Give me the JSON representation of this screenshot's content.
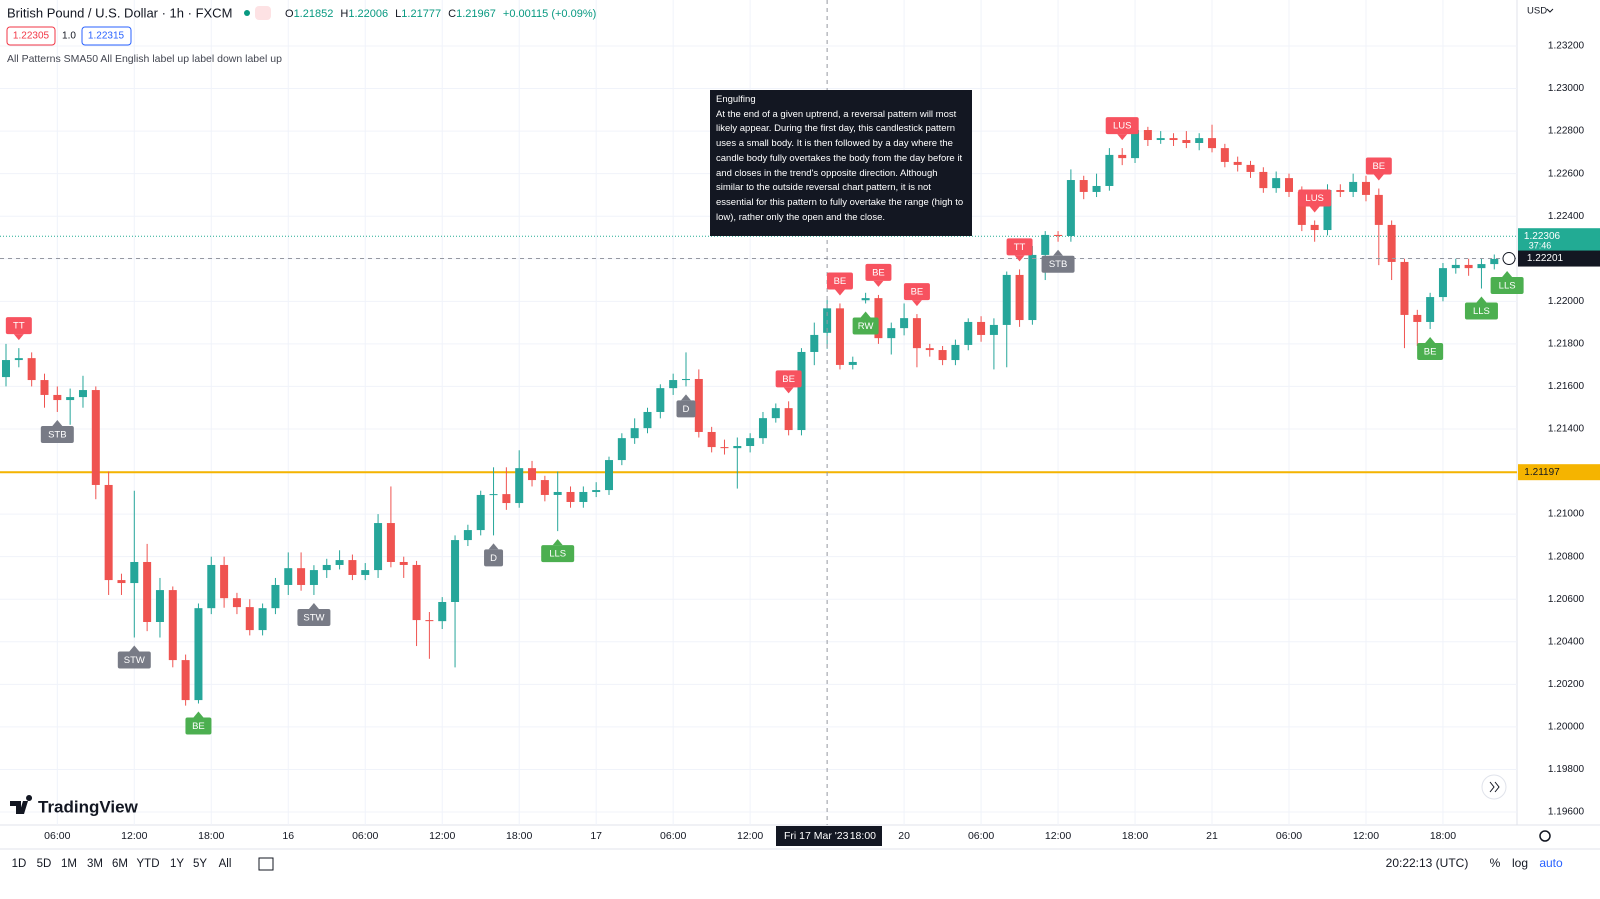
{
  "header": {
    "symbol": "British Pound / U.S. Dollar · 1h · FXCM",
    "ohlc_labels": [
      "O",
      "H",
      "L",
      "C"
    ],
    "change": "+0.00115 (+0.09%)",
    "bid": "1.22305",
    "spread": "1.0",
    "ask": "1.22315",
    "indicators": "All Patterns SMA50 All English label up label down label up",
    "currency": "USD"
  },
  "tooltip": {
    "title": "Engulfing",
    "text": "At the end of a given uptrend, a reversal pattern will most likely appear. During the first day, this candlestick pattern uses a small body. It is then followed by a day where the candle body fully overtakes the body from the day before it and closes in the trend's opposite direction. Although similar to the outside reversal chart pattern, it is not essential for this pattern to fully overtake the range (high to low), rather only the open and the close."
  },
  "chart_data": {
    "type": "candlestick",
    "grid": true,
    "up_color": "#26a69a",
    "down_color": "#ef5350",
    "categories": [
      null,
      null,
      null,
      null,
      "06:00",
      null,
      null,
      null,
      null,
      null,
      "12:00",
      null,
      null,
      null,
      null,
      null,
      "18:00",
      null,
      null,
      null,
      null,
      null,
      "16",
      null,
      null,
      null,
      null,
      null,
      "06:00",
      null,
      null,
      null,
      null,
      null,
      "12:00",
      null,
      null,
      null,
      null,
      null,
      "18:00",
      null,
      null,
      null,
      null,
      null,
      "17",
      null,
      null,
      null,
      null,
      null,
      "06:00",
      null,
      null,
      null,
      null,
      null,
      "12:00",
      null,
      null,
      null,
      null,
      null,
      null,
      null,
      null,
      null,
      null,
      null,
      "20",
      null,
      null,
      null,
      null,
      null,
      "06:00",
      null,
      null,
      null,
      null,
      null,
      "12:00",
      null,
      null,
      null,
      null,
      null,
      "18:00",
      null,
      null,
      null,
      null,
      null,
      "21",
      null,
      null,
      null,
      null,
      null,
      "06:00",
      null,
      null,
      null,
      null,
      null,
      "12:00",
      null,
      null,
      null,
      null,
      null,
      "18:00",
      null,
      null,
      null,
      null,
      null
    ],
    "open": [
      1.21644,
      1.21724,
      1.21733,
      1.2163,
      1.2156,
      1.21536,
      1.2155,
      1.21583,
      1.21137,
      1.2069,
      1.20676,
      1.20775,
      1.20493,
      1.20643,
      1.20314,
      1.20126,
      1.20558,
      1.20761,
      1.20605,
      1.20563,
      1.20455,
      1.20558,
      1.20667,
      1.20746,
      1.20667,
      1.20737,
      1.20761,
      1.20784,
      1.20714,
      1.20737,
      1.20958,
      1.20775,
      1.20761,
      1.20502,
      1.20497,
      1.20587,
      1.20878,
      1.20925,
      1.2109,
      1.21094,
      1.21052,
      1.21216,
      1.2116,
      1.2109,
      1.21104,
      1.21057,
      1.21104,
      1.21113,
      1.21254,
      1.21357,
      1.21404,
      1.2148,
      1.21592,
      1.2163,
      1.21635,
      1.21386,
      1.21315,
      1.2131,
      1.2132,
      1.21357,
      1.21451,
      1.21498,
      1.21395,
      1.21762,
      1.21852,
      1.21967,
      1.21701,
      1.22005,
      1.22015,
      1.21827,
      1.21874,
      1.21921,
      1.2178,
      1.21771,
      1.21724,
      1.21795,
      1.21903,
      1.21842,
      1.21889,
      1.22124,
      1.21912,
      1.22218,
      1.22312,
      1.22307,
      1.2257,
      1.22514,
      1.22542,
      1.22688,
      1.22673,
      1.22805,
      1.22758,
      1.22767,
      1.22758,
      1.22744,
      1.22767,
      1.2272,
      1.22655,
      1.22641,
      1.22608,
      1.22532,
      1.22579,
      1.22514,
      1.22359,
      1.22335,
      1.22523,
      1.22514,
      1.22561,
      1.225,
      1.22359,
      1.22185,
      1.21936,
      1.21903,
      1.2202,
      1.22156,
      1.22171,
      1.22156,
      1.22175,
      1.22199
    ],
    "high": [
      1.218,
      1.2178,
      1.2176,
      1.2166,
      1.216,
      1.2159,
      1.2165,
      1.216,
      1.212,
      1.2072,
      1.2111,
      1.2086,
      1.207,
      1.2066,
      1.2034,
      1.2058,
      1.208,
      1.208,
      1.2063,
      1.206,
      1.2058,
      1.207,
      1.2082,
      1.2082,
      1.2076,
      1.2079,
      1.2083,
      1.2081,
      1.2077,
      1.21,
      1.2113,
      1.208,
      1.2078,
      1.2054,
      1.2061,
      1.209,
      1.2095,
      1.2111,
      1.2122,
      1.2122,
      1.213,
      1.2125,
      1.2118,
      1.212,
      1.2113,
      1.2113,
      1.2115,
      1.2127,
      1.2138,
      1.2145,
      1.215,
      1.2161,
      1.2166,
      1.2176,
      1.2168,
      1.2141,
      1.2135,
      1.2136,
      1.2138,
      1.2148,
      1.2152,
      1.2153,
      1.2178,
      1.219,
      1.22006,
      1.2199,
      1.2174,
      1.2204,
      1.2203,
      1.219,
      1.2199,
      1.2194,
      1.218,
      1.2179,
      1.2182,
      1.2192,
      1.2193,
      1.2192,
      1.2214,
      1.2215,
      1.2226,
      1.2233,
      1.2233,
      1.2262,
      1.2259,
      1.226,
      1.2272,
      1.2272,
      1.2285,
      1.2282,
      1.228,
      1.2279,
      1.228,
      1.2279,
      1.2283,
      1.2274,
      1.2268,
      1.2266,
      1.2263,
      1.2261,
      1.226,
      1.2254,
      1.2238,
      1.2255,
      1.2255,
      1.226,
      1.2259,
      1.2253,
      1.2238,
      1.222,
      1.2196,
      1.2204,
      1.2218,
      1.222,
      1.222,
      1.222,
      1.2222,
      1.2223
    ],
    "low": [
      1.216,
      1.2169,
      1.216,
      1.215,
      1.2148,
      1.2142,
      1.215,
      1.2107,
      1.2062,
      1.2062,
      1.2042,
      1.2045,
      1.2042,
      1.2028,
      1.201,
      1.2011,
      1.2053,
      1.2056,
      1.2053,
      1.2043,
      1.2043,
      1.2053,
      1.2062,
      1.2064,
      1.2062,
      1.207,
      1.2074,
      1.2069,
      1.2069,
      1.207,
      1.2075,
      1.207,
      1.2038,
      1.2032,
      1.2046,
      1.2028,
      1.2085,
      1.209,
      1.209,
      1.2102,
      1.2103,
      1.2113,
      1.2106,
      1.2092,
      1.2103,
      1.2103,
      1.2108,
      1.2109,
      1.2123,
      1.2133,
      1.2138,
      1.2145,
      1.2156,
      1.216,
      1.2136,
      1.2129,
      1.2128,
      1.2112,
      1.2129,
      1.2133,
      1.2143,
      1.2137,
      1.2137,
      1.217,
      1.21777,
      1.2168,
      1.2168,
      1.2199,
      1.218,
      1.2175,
      1.2184,
      1.2169,
      1.2174,
      1.217,
      1.217,
      1.2177,
      1.2181,
      1.2168,
      1.2169,
      1.2188,
      1.2189,
      1.221,
      1.2228,
      1.2228,
      1.2248,
      1.2249,
      1.2252,
      1.2264,
      1.2265,
      1.2273,
      1.2274,
      1.2273,
      1.2272,
      1.2271,
      1.227,
      1.2263,
      1.2261,
      1.2258,
      1.2251,
      1.2251,
      1.2249,
      1.2233,
      1.2228,
      1.2231,
      1.2249,
      1.2249,
      1.2247,
      1.2217,
      1.221,
      1.2178,
      1.2179,
      1.2187,
      1.22,
      1.2213,
      1.2212,
      1.2206,
      1.2215,
      1.2218
    ],
    "close": [
      1.21724,
      1.21733,
      1.2163,
      1.2156,
      1.21536,
      1.2155,
      1.21583,
      1.21137,
      1.2069,
      1.20676,
      1.20775,
      1.20493,
      1.20643,
      1.20314,
      1.20126,
      1.20558,
      1.20761,
      1.20605,
      1.20563,
      1.20455,
      1.20558,
      1.20667,
      1.20746,
      1.20667,
      1.20737,
      1.20761,
      1.20784,
      1.20714,
      1.20737,
      1.20958,
      1.20775,
      1.20761,
      1.20502,
      1.20497,
      1.20587,
      1.20878,
      1.20925,
      1.2109,
      1.21094,
      1.21052,
      1.21216,
      1.2116,
      1.2109,
      1.21104,
      1.21057,
      1.21104,
      1.21113,
      1.21254,
      1.21357,
      1.21404,
      1.2148,
      1.21592,
      1.2163,
      1.21635,
      1.21386,
      1.21315,
      1.2131,
      1.2132,
      1.21357,
      1.21451,
      1.21498,
      1.21395,
      1.21762,
      1.21842,
      1.21967,
      1.21701,
      1.21715,
      1.22015,
      1.21827,
      1.21874,
      1.21921,
      1.2178,
      1.21771,
      1.21724,
      1.21795,
      1.21903,
      1.21842,
      1.21889,
      1.22124,
      1.21912,
      1.22218,
      1.22312,
      1.22307,
      1.2257,
      1.22514,
      1.22542,
      1.22688,
      1.22673,
      1.22805,
      1.22758,
      1.22767,
      1.22758,
      1.22744,
      1.22767,
      1.2272,
      1.22655,
      1.22641,
      1.22608,
      1.22532,
      1.22579,
      1.22514,
      1.22359,
      1.22335,
      1.22523,
      1.22514,
      1.22561,
      1.225,
      1.22359,
      1.22185,
      1.21936,
      1.21903,
      1.2202,
      1.22156,
      1.22171,
      1.22156,
      1.22175,
      1.22199,
      1.22201
    ],
    "ylim": [
      1.19539,
      1.23416
    ],
    "yticks": [
      {
        "value": 1.196,
        "label": "1.19600"
      },
      {
        "value": 1.198,
        "label": "1.19800"
      },
      {
        "value": 1.2,
        "label": "1.20000"
      },
      {
        "value": 1.202,
        "label": "1.20200"
      },
      {
        "value": 1.204,
        "label": "1.20400"
      },
      {
        "value": 1.206,
        "label": "1.20600"
      },
      {
        "value": 1.208,
        "label": "1.20800"
      },
      {
        "value": 1.21,
        "label": "1.21000"
      },
      {
        "value": 1.212,
        "label": "1.21200"
      },
      {
        "value": 1.214,
        "label": "1.21400"
      },
      {
        "value": 1.216,
        "label": "1.21600"
      },
      {
        "value": 1.218,
        "label": "1.21800"
      },
      {
        "value": 1.22,
        "label": "1.22000"
      },
      {
        "value": 1.222,
        "label": "1.22200"
      },
      {
        "value": 1.224,
        "label": "1.22400"
      },
      {
        "value": 1.226,
        "label": "1.22600"
      },
      {
        "value": 1.228,
        "label": "1.22800"
      },
      {
        "value": 1.23,
        "label": "1.23000"
      },
      {
        "value": 1.232,
        "label": "1.23200"
      }
    ],
    "price_lines": [
      {
        "value": 1.22306,
        "color": "#22ab94",
        "style": "dotted",
        "countdown": "37:46"
      },
      {
        "value": 1.21197,
        "color": "#f5b400",
        "style": "solid"
      }
    ],
    "crosshair": {
      "price": 1.22201,
      "date": "Fri 17 Mar '23",
      "time": "18:00"
    },
    "patterns": [
      {
        "label": "TT",
        "candle": 1,
        "position": "above",
        "color": "#f7525f"
      },
      {
        "label": "STB",
        "candle": 4,
        "position": "below",
        "color": "#787b86"
      },
      {
        "label": "STW",
        "candle": 10,
        "position": "below",
        "color": "#787b86"
      },
      {
        "label": "BE",
        "candle": 15,
        "position": "below",
        "color": "#4caf50"
      },
      {
        "label": "STW",
        "candle": 24,
        "position": "below",
        "color": "#787b86"
      },
      {
        "label": "D",
        "candle": 38,
        "position": "below",
        "color": "#787b86"
      },
      {
        "label": "LLS",
        "candle": 43,
        "position": "below",
        "color": "#4caf50"
      },
      {
        "label": "D",
        "candle": 53,
        "position": "below",
        "color": "#787b86"
      },
      {
        "label": "BE",
        "candle": 61,
        "position": "above",
        "color": "#f7525f"
      },
      {
        "label": "BE",
        "candle": 65,
        "position": "above",
        "color": "#f7525f"
      },
      {
        "label": "RW",
        "candle": 67,
        "position": "below",
        "color": "#4caf50"
      },
      {
        "label": "BE",
        "candle": 68,
        "position": "above",
        "color": "#f7525f"
      },
      {
        "label": "BE",
        "candle": 71,
        "position": "above",
        "color": "#f7525f"
      },
      {
        "label": "TT",
        "candle": 79,
        "position": "above",
        "color": "#f7525f"
      },
      {
        "label": "STB",
        "candle": 82,
        "position": "below",
        "color": "#787b86"
      },
      {
        "label": "LUS",
        "candle": 87,
        "position": "above",
        "color": "#f7525f"
      },
      {
        "label": "LUS",
        "candle": 102,
        "position": "above",
        "color": "#f7525f"
      },
      {
        "label": "BE",
        "candle": 107,
        "position": "above",
        "color": "#f7525f"
      },
      {
        "label": "BE",
        "candle": 111,
        "position": "below",
        "color": "#4caf50"
      },
      {
        "label": "LLS",
        "candle": 115,
        "position": "below",
        "color": "#4caf50"
      },
      {
        "label": "LLS",
        "candle": 117,
        "position": "below",
        "color": "#4caf50"
      }
    ]
  },
  "footer": {
    "logo": "TradingView",
    "ranges": [
      "1D",
      "5D",
      "1M",
      "3M",
      "6M",
      "YTD",
      "1Y",
      "5Y",
      "All"
    ],
    "clock": "20:22:13 (UTC)",
    "percent": "%",
    "log": "log",
    "auto": "auto"
  }
}
